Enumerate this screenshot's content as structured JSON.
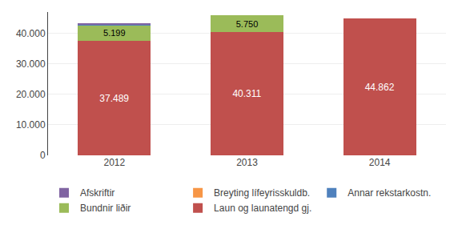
{
  "chart_data": {
    "type": "bar",
    "stacked": true,
    "categories": [
      "2012",
      "2013",
      "2014"
    ],
    "series": [
      {
        "name": "Laun og launatengd gj.",
        "color": "#C0504D",
        "values": [
          37489,
          40311,
          44862
        ],
        "data_labels": true,
        "value_labels": [
          "37.489",
          "40.311",
          "44.862"
        ]
      },
      {
        "name": "Bundnir liðir",
        "color": "#9BBB59",
        "values": [
          5199,
          5750,
          0
        ],
        "data_labels": true,
        "value_labels": [
          "5.199",
          "5.750",
          null
        ]
      },
      {
        "name": "Annar rekstarkostn.",
        "color": "#4F81BD",
        "values": [
          300,
          0,
          0
        ]
      },
      {
        "name": "Breyting lífeyrisskuldb.",
        "color": "#F79646",
        "values": [
          50,
          0,
          0
        ]
      },
      {
        "name": "Afskriftir",
        "color": "#8064A2",
        "values": [
          150,
          0,
          0
        ]
      }
    ],
    "ylim": [
      0,
      47000
    ],
    "yticks": [
      0,
      {
        "value": 10000,
        "label": "10.000"
      },
      {
        "value": 20000,
        "label": "20.000"
      },
      {
        "value": 30000,
        "label": "30.000"
      },
      {
        "value": 40000,
        "label": "40.000"
      }
    ],
    "grid": true,
    "legend": "bottom"
  }
}
